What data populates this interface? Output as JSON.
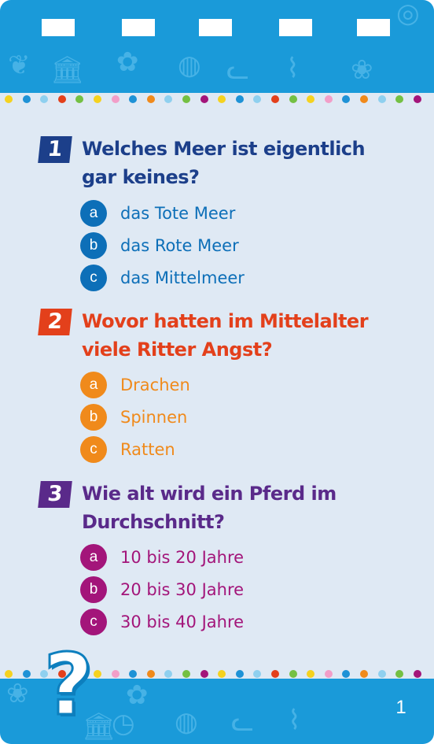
{
  "colors": {
    "band_blue": "#1a9ad9",
    "card_bg": "#dfe9f4",
    "q1": "#1c3f8a",
    "q1_answer": "#0d6fb8",
    "q2": "#e3401b",
    "q2_answer": "#f08a1b",
    "q3": "#5a2a8a",
    "q3_answer": "#a3157a"
  },
  "questions": [
    {
      "number": "1",
      "text": "Welches Meer ist eigentlich gar keines?",
      "answers": [
        {
          "letter": "a",
          "text": "das Tote Meer"
        },
        {
          "letter": "b",
          "text": "das Rote Meer"
        },
        {
          "letter": "c",
          "text": "das Mittelmeer"
        }
      ]
    },
    {
      "number": "2",
      "text": "Wovor hatten im Mittelalter viele Ritter Angst?",
      "answers": [
        {
          "letter": "a",
          "text": "Drachen"
        },
        {
          "letter": "b",
          "text": "Spinnen"
        },
        {
          "letter": "c",
          "text": "Ratten"
        }
      ]
    },
    {
      "number": "3",
      "text": "Wie alt wird ein Pferd im Durchschnitt?",
      "answers": [
        {
          "letter": "a",
          "text": "10 bis 20 Jahre"
        },
        {
          "letter": "b",
          "text": "20 bis 30 Jahre"
        },
        {
          "letter": "c",
          "text": "30 bis 40 Jahre"
        }
      ]
    }
  ],
  "footer": {
    "question_mark": "?",
    "page_number": "1"
  },
  "decorations": {
    "top_icons": [
      "leaf-icon",
      "building-icon",
      "leaf-icon",
      "globe-icon",
      "cat-icon",
      "dinosaur-icon",
      "paw-icon",
      "planet-icon"
    ],
    "bottom_icons": [
      "paw-icon",
      "leaf-icon",
      "building-icon",
      "clock-icon",
      "globe-icon",
      "cat-icon",
      "dinosaur-icon"
    ]
  }
}
